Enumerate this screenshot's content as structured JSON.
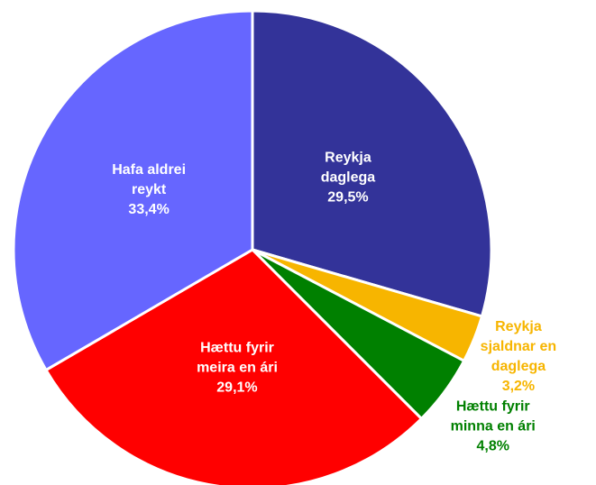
{
  "chart_data": {
    "type": "pie",
    "categories": [
      [
        "Reykja",
        "daglega"
      ],
      [
        "Reykja",
        "sjaldnar en",
        "daglega"
      ],
      [
        "Hættu fyrir",
        "minna en ári"
      ],
      [
        "Hættu fyrir",
        "meira en ári"
      ],
      [
        "Hafa aldrei",
        "reykt"
      ]
    ],
    "values": [
      29.5,
      3.2,
      4.8,
      29.1,
      33.4
    ],
    "value_labels": [
      "29,5%",
      "3,2%",
      "4,8%",
      "29,1%",
      "33,4%"
    ],
    "colors": [
      "#333399",
      "#f7b500",
      "#008000",
      "#ff0000",
      "#6666ff"
    ]
  }
}
